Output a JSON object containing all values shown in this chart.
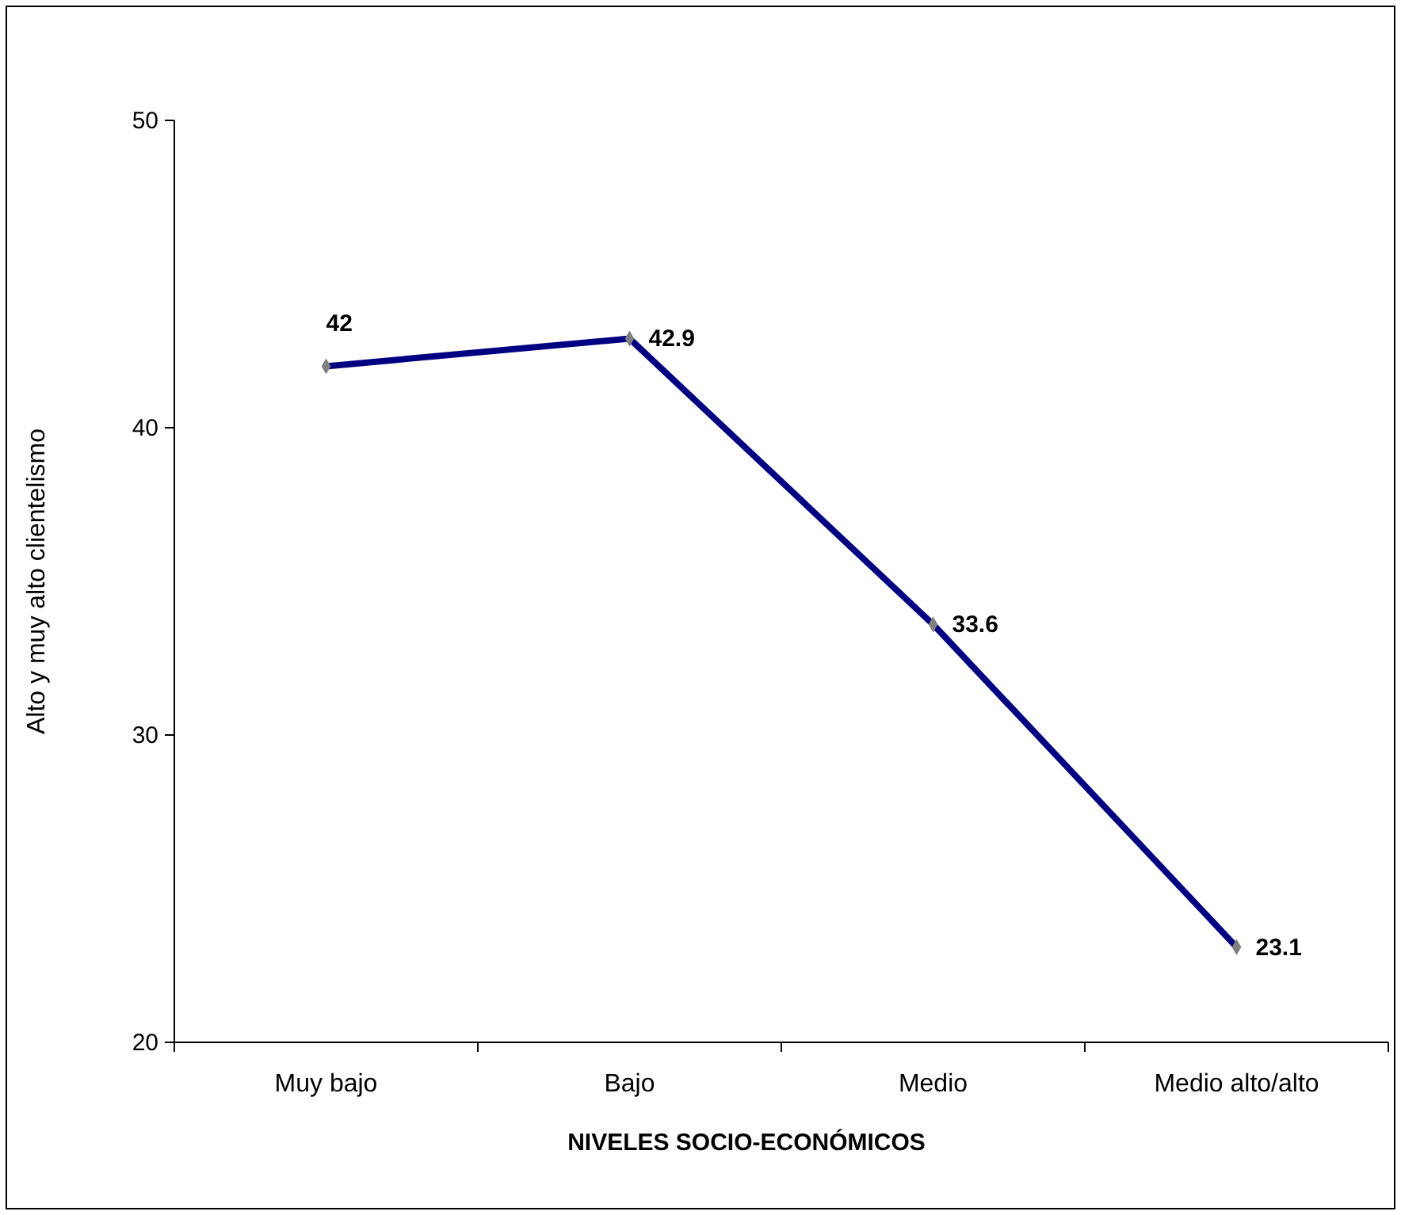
{
  "chart_data": {
    "type": "line",
    "xlabel": "NIVELES SOCIO-ECONÓMICOS",
    "ylabel": "Alto y muy alto clientelismo",
    "categories": [
      "Muy bajo",
      "Bajo",
      "Medio",
      "Medio alto/alto"
    ],
    "series": [
      {
        "color": "#000080",
        "values": [
          42,
          42.9,
          33.6,
          23.1
        ]
      }
    ],
    "ylim": [
      20,
      50
    ],
    "yticks": [
      20,
      30,
      40,
      50
    ],
    "marker": "diamond",
    "line_style": "solid",
    "data_labels": true
  }
}
